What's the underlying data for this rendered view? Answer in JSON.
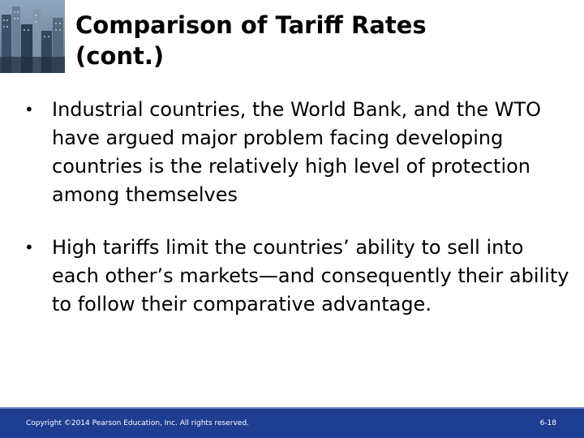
{
  "slide": {
    "title": "Comparison of Tariff Rates\n(cont.)",
    "bullets": [
      "Industrial countries, the World Bank, and the WTO have argued major problem facing developing countries is the relatively high level of protection among themselves",
      "High tariffs limit the countries’ ability to sell into each other’s markets—and consequently their ability to follow their comparative advantage."
    ],
    "bullet_symbol": "•",
    "corner_image": "city-skyline-photo"
  },
  "footer": {
    "copyright": "Copyright ©2014 Pearson Education, Inc. All rights reserved.",
    "page_number": "6-18",
    "background_color": "#1e3e92"
  }
}
